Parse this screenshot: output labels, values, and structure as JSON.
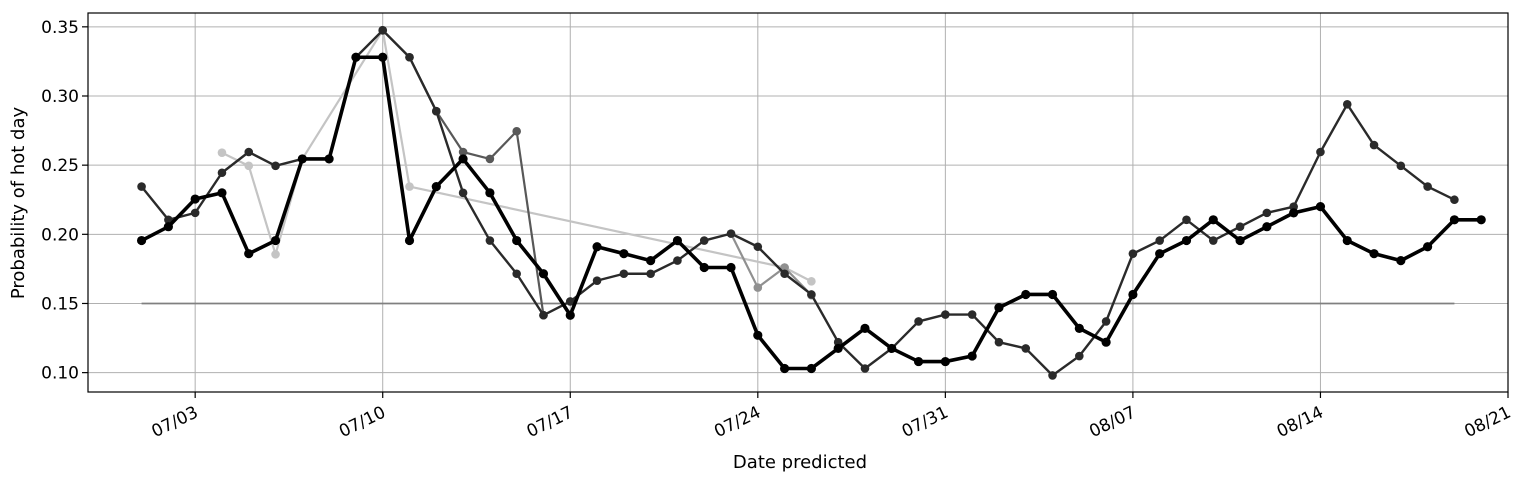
{
  "chart_data": {
    "type": "line",
    "xlabel": "Date predicted",
    "ylabel": "Probability of hot day",
    "x_axis": "date",
    "year_shown": false,
    "xlim": [
      "06-29",
      "08-21"
    ],
    "ylim": [
      0.086,
      0.36
    ],
    "x_tick_labels": [
      "07/03",
      "07/10",
      "07/17",
      "07/24",
      "07/31",
      "08/07",
      "08/14",
      "08/21"
    ],
    "x_tick_dates": [
      "07-03",
      "07-10",
      "07-17",
      "07-24",
      "07-31",
      "08-07",
      "08-14",
      "08-21"
    ],
    "y_ticks": [
      0.1,
      0.15,
      0.2,
      0.25,
      0.3,
      0.35
    ],
    "y_tick_labels": [
      "0.10",
      "0.15",
      "0.20",
      "0.25",
      "0.30",
      "0.35"
    ],
    "grid": true,
    "colors": {
      "main": "#000000",
      "dark": "#2a2a2a",
      "mid": "#585858",
      "light": "#909090",
      "faint": "#c4c4c4",
      "threshold": "#808080",
      "grid": "#b0b0b0"
    },
    "threshold": {
      "value": 0.15,
      "x_start": "07-01",
      "x_end": "08-19",
      "color": "#808080"
    },
    "series": [
      {
        "color": "#c4c4c4",
        "width": 2.2,
        "points": [
          [
            "07-04",
            0.259
          ],
          [
            "07-05",
            0.2495
          ],
          [
            "07-06",
            0.1855
          ],
          [
            "07-07",
            0.2545
          ],
          [
            "07-10",
            0.3475
          ],
          [
            "07-11",
            0.2345
          ],
          [
            "07-25",
            0.176
          ],
          [
            "07-26",
            0.166
          ]
        ]
      },
      {
        "color": "#909090",
        "width": 2.2,
        "points": [
          [
            "07-23",
            0.2005
          ],
          [
            "07-24",
            0.1615
          ],
          [
            "07-25",
            0.176
          ],
          [
            "07-26",
            0.156
          ]
        ]
      },
      {
        "color": "#585858",
        "width": 2.2,
        "points": [
          [
            "07-10",
            0.3475
          ],
          [
            "07-11",
            0.328
          ],
          [
            "07-12",
            0.289
          ],
          [
            "07-13",
            0.2595
          ],
          [
            "07-14",
            0.2545
          ],
          [
            "07-15",
            0.2745
          ],
          [
            "07-16",
            0.1415
          ]
        ]
      },
      {
        "color": "#2a2a2a",
        "width": 2.4,
        "points": [
          [
            "07-01",
            0.2345
          ],
          [
            "07-02",
            0.2105
          ],
          [
            "07-03",
            0.2155
          ],
          [
            "07-04",
            0.2445
          ],
          [
            "07-05",
            0.2595
          ],
          [
            "07-06",
            0.2495
          ],
          [
            "07-07",
            0.2545
          ],
          [
            "07-08",
            0.2545
          ],
          [
            "07-09",
            0.328
          ],
          [
            "07-10",
            0.3475
          ],
          [
            "07-11",
            0.328
          ],
          [
            "07-12",
            0.289
          ],
          [
            "07-13",
            0.23
          ],
          [
            "07-14",
            0.1955
          ],
          [
            "07-15",
            0.1715
          ],
          [
            "07-16",
            0.1415
          ],
          [
            "07-17",
            0.1515
          ],
          [
            "07-18",
            0.1665
          ],
          [
            "07-19",
            0.1715
          ],
          [
            "07-20",
            0.1715
          ],
          [
            "07-21",
            0.181
          ],
          [
            "07-22",
            0.1955
          ],
          [
            "07-23",
            0.2005
          ],
          [
            "07-24",
            0.191
          ],
          [
            "07-25",
            0.1715
          ],
          [
            "07-26",
            0.1565
          ],
          [
            "07-27",
            0.122
          ],
          [
            "07-28",
            0.103
          ],
          [
            "07-29",
            0.1175
          ],
          [
            "07-30",
            0.137
          ],
          [
            "07-31",
            0.142
          ],
          [
            "08-01",
            0.142
          ],
          [
            "08-02",
            0.122
          ],
          [
            "08-03",
            0.1175
          ],
          [
            "08-04",
            0.098
          ],
          [
            "08-05",
            0.112
          ],
          [
            "08-06",
            0.137
          ],
          [
            "08-07",
            0.186
          ],
          [
            "08-08",
            0.1955
          ],
          [
            "08-09",
            0.2105
          ],
          [
            "08-10",
            0.1955
          ],
          [
            "08-11",
            0.2055
          ],
          [
            "08-12",
            0.2155
          ],
          [
            "08-13",
            0.22
          ],
          [
            "08-14",
            0.2595
          ],
          [
            "08-15",
            0.294
          ],
          [
            "08-16",
            0.2645
          ],
          [
            "08-17",
            0.2495
          ],
          [
            "08-18",
            0.2345
          ],
          [
            "08-19",
            0.225
          ]
        ]
      },
      {
        "color": "#000000",
        "width": 3.6,
        "points": [
          [
            "07-01",
            0.1955
          ],
          [
            "07-02",
            0.2055
          ],
          [
            "07-03",
            0.2255
          ],
          [
            "07-04",
            0.23
          ],
          [
            "07-05",
            0.186
          ],
          [
            "07-06",
            0.1955
          ],
          [
            "07-07",
            0.2545
          ],
          [
            "07-08",
            0.2545
          ],
          [
            "07-09",
            0.328
          ],
          [
            "07-10",
            0.328
          ],
          [
            "07-11",
            0.1955
          ],
          [
            "07-12",
            0.2345
          ],
          [
            "07-13",
            0.2545
          ],
          [
            "07-14",
            0.23
          ],
          [
            "07-15",
            0.1955
          ],
          [
            "07-16",
            0.1715
          ],
          [
            "07-17",
            0.1415
          ],
          [
            "07-18",
            0.191
          ],
          [
            "07-19",
            0.186
          ],
          [
            "07-20",
            0.181
          ],
          [
            "07-21",
            0.1955
          ],
          [
            "07-22",
            0.176
          ],
          [
            "07-23",
            0.176
          ],
          [
            "07-24",
            0.127
          ],
          [
            "07-25",
            0.103
          ],
          [
            "07-26",
            0.103
          ],
          [
            "07-27",
            0.1175
          ],
          [
            "07-28",
            0.132
          ],
          [
            "07-29",
            0.1175
          ],
          [
            "07-30",
            0.108
          ],
          [
            "07-31",
            0.108
          ],
          [
            "08-01",
            0.112
          ],
          [
            "08-02",
            0.147
          ],
          [
            "08-03",
            0.1565
          ],
          [
            "08-04",
            0.1565
          ],
          [
            "08-05",
            0.132
          ],
          [
            "08-06",
            0.122
          ],
          [
            "08-07",
            0.1565
          ],
          [
            "08-08",
            0.186
          ],
          [
            "08-09",
            0.1955
          ],
          [
            "08-10",
            0.2105
          ],
          [
            "08-11",
            0.1955
          ],
          [
            "08-12",
            0.2055
          ],
          [
            "08-13",
            0.2155
          ],
          [
            "08-14",
            0.22
          ],
          [
            "08-15",
            0.1955
          ],
          [
            "08-16",
            0.186
          ],
          [
            "08-17",
            0.181
          ],
          [
            "08-18",
            0.191
          ],
          [
            "08-19",
            0.2105
          ],
          [
            "08-20",
            0.2105
          ]
        ]
      }
    ]
  }
}
